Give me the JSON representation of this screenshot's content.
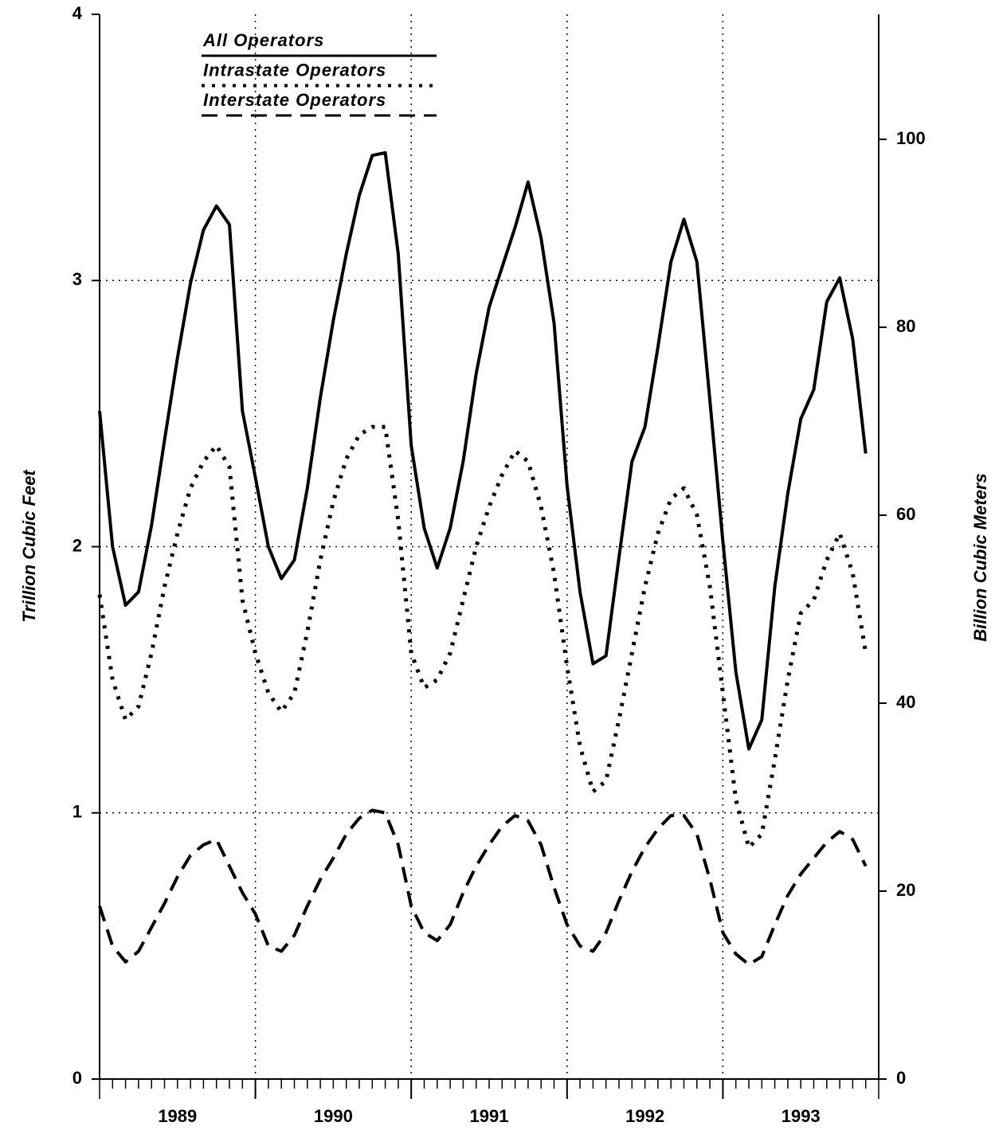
{
  "chart_data": {
    "type": "line",
    "ylabel": "Trillion Cubic Feet",
    "y2label": "Billion Cubic Meters",
    "xlim": [
      1989,
      1994
    ],
    "xticks": [
      {
        "value": 1989.5,
        "label": "1989"
      },
      {
        "value": 1990.5,
        "label": "1990"
      },
      {
        "value": 1991.5,
        "label": "1991"
      },
      {
        "value": 1992.5,
        "label": "1992"
      },
      {
        "value": 1993.5,
        "label": "1993"
      }
    ],
    "xgrid": [
      1990,
      1991,
      1992,
      1993
    ],
    "ylim": [
      0,
      4
    ],
    "yticks": [
      0,
      1,
      2,
      3,
      4
    ],
    "y2lim": [
      0,
      113.3
    ],
    "y2ticks": [
      0,
      20,
      40,
      60,
      80,
      100
    ],
    "grid": true,
    "legend": "upper left",
    "x": [
      1989,
      1989.0833,
      1989.1667,
      1989.25,
      1989.3333,
      1989.4167,
      1989.5,
      1989.5833,
      1989.6667,
      1989.75,
      1989.8333,
      1989.9167,
      1990,
      1990.0833,
      1990.1667,
      1990.25,
      1990.3333,
      1990.4167,
      1990.5,
      1990.5833,
      1990.6667,
      1990.75,
      1990.8333,
      1990.9167,
      1991,
      1991.0833,
      1991.1667,
      1991.25,
      1991.3333,
      1991.4167,
      1991.5,
      1991.5833,
      1991.6667,
      1991.75,
      1991.8333,
      1991.9167,
      1992,
      1992.0833,
      1992.1667,
      1992.25,
      1992.3333,
      1992.4167,
      1992.5,
      1992.5833,
      1992.6667,
      1992.75,
      1992.8333,
      1992.9167,
      1993,
      1993.0833,
      1993.1667,
      1993.25,
      1993.3333,
      1993.4167,
      1993.5,
      1993.5833,
      1993.6667,
      1993.75,
      1993.8333,
      1993.9167
    ],
    "series": [
      {
        "name": "All Operators",
        "color": "#000000",
        "dash": "solid",
        "values": [
          2.51,
          2.0,
          1.78,
          1.83,
          2.08,
          2.4,
          2.71,
          2.99,
          3.19,
          3.28,
          3.21,
          2.51,
          2.26,
          2.0,
          1.88,
          1.95,
          2.22,
          2.56,
          2.85,
          3.1,
          3.32,
          3.47,
          3.48,
          3.1,
          2.38,
          2.07,
          1.92,
          2.07,
          2.32,
          2.65,
          2.9,
          3.05,
          3.2,
          3.37,
          3.16,
          2.84,
          2.23,
          1.83,
          1.56,
          1.59,
          1.96,
          2.32,
          2.45,
          2.75,
          3.07,
          3.23,
          3.07,
          2.55,
          2.02,
          1.53,
          1.24,
          1.35,
          1.85,
          2.2,
          2.48,
          2.59,
          2.92,
          3.01,
          2.78,
          2.35
        ]
      },
      {
        "name": "Intrastate Operators",
        "color": "#000000",
        "dash": "dotted",
        "values": [
          1.82,
          1.5,
          1.35,
          1.4,
          1.6,
          1.85,
          2.05,
          2.22,
          2.32,
          2.38,
          2.3,
          1.8,
          1.6,
          1.45,
          1.38,
          1.45,
          1.68,
          1.95,
          2.17,
          2.33,
          2.42,
          2.45,
          2.45,
          2.1,
          1.6,
          1.47,
          1.5,
          1.6,
          1.8,
          2.0,
          2.15,
          2.27,
          2.36,
          2.32,
          2.15,
          1.9,
          1.55,
          1.25,
          1.08,
          1.12,
          1.35,
          1.6,
          1.85,
          2.05,
          2.18,
          2.22,
          2.12,
          1.85,
          1.45,
          1.05,
          0.87,
          0.92,
          1.2,
          1.5,
          1.75,
          1.8,
          1.95,
          2.05,
          1.9,
          1.6
        ]
      },
      {
        "name": "Interstate Operators",
        "color": "#000000",
        "dash": "dashed",
        "values": [
          0.65,
          0.5,
          0.44,
          0.48,
          0.57,
          0.66,
          0.76,
          0.84,
          0.88,
          0.9,
          0.8,
          0.7,
          0.62,
          0.5,
          0.48,
          0.54,
          0.65,
          0.75,
          0.83,
          0.92,
          0.98,
          1.01,
          1.0,
          0.88,
          0.65,
          0.55,
          0.52,
          0.58,
          0.7,
          0.8,
          0.88,
          0.95,
          0.99,
          0.97,
          0.88,
          0.72,
          0.58,
          0.5,
          0.48,
          0.55,
          0.67,
          0.78,
          0.87,
          0.94,
          0.99,
          0.99,
          0.92,
          0.75,
          0.55,
          0.47,
          0.43,
          0.46,
          0.58,
          0.69,
          0.77,
          0.83,
          0.89,
          0.93,
          0.9,
          0.8
        ]
      }
    ]
  }
}
